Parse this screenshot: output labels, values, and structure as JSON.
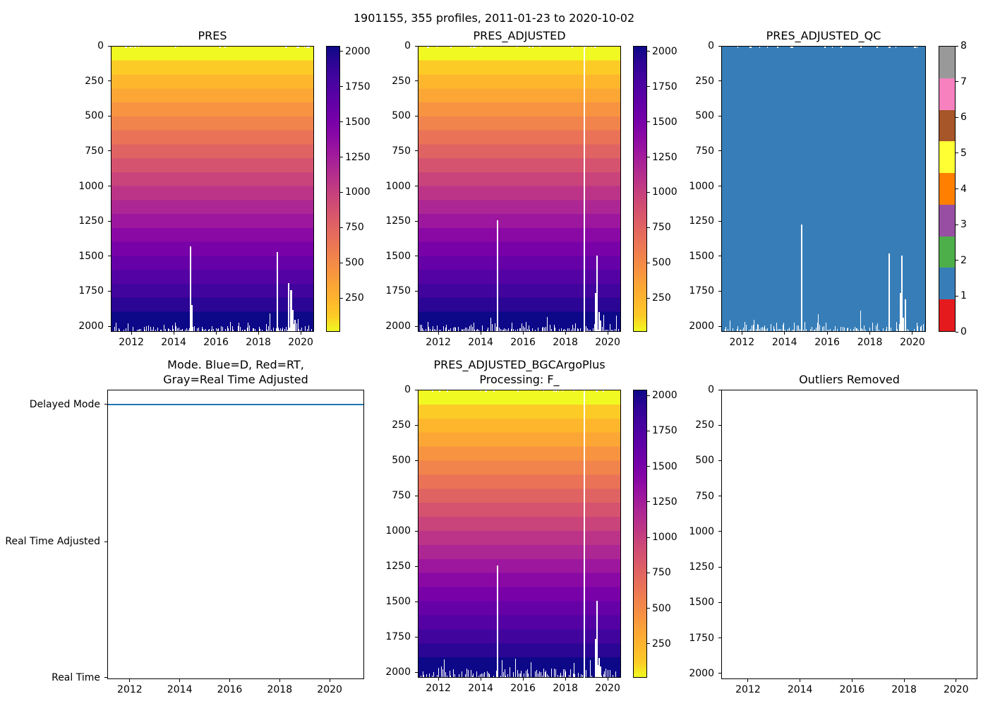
{
  "figure_title": "1901155, 355 profiles, 2011-01-23 to 2020-10-02",
  "colors": {
    "background": "#ffffff",
    "axis": "#000000",
    "mode_line_blue": "#1f77b4",
    "qc_fill_blue": "#377eb8",
    "plasma_bands_top_to_bottom": [
      "#f0f921",
      "#fccb26",
      "#feb72d",
      "#fca636",
      "#f79341",
      "#f1834c",
      "#e97257",
      "#e06363",
      "#d5536f",
      "#c9447a",
      "#bb3488",
      "#ac2694",
      "#9c179e",
      "#8a09a5",
      "#7801a8",
      "#6600a7",
      "#5402a3",
      "#41049d",
      "#2b0594",
      "#0d0887"
    ],
    "qc_palette_values_0_to_8": [
      "#e41a1c",
      "#377eb8",
      "#4daf4a",
      "#984ea3",
      "#ff7f00",
      "#ffff33",
      "#a65628",
      "#f781bf",
      "#999999"
    ]
  },
  "chart_data": [
    {
      "id": "pres",
      "type": "heatmap",
      "title": "PRES",
      "x_ticks": [
        2012,
        2014,
        2016,
        2018,
        2020
      ],
      "xlim": [
        2011.03,
        2020.63
      ],
      "y_ticks": [
        0,
        250,
        500,
        750,
        1000,
        1250,
        1500,
        1750,
        2000
      ],
      "ylim": [
        0,
        2040
      ],
      "y_axis": "pressure (dbar), 0 at top",
      "colormap": "plasma reversed (yellow=0 dbar at surface, dark blue=2000 dbar at depth)",
      "colorbar_ticks": [
        2000,
        1750,
        1500,
        1250,
        1000,
        750,
        500,
        250
      ],
      "colorbar_range_top_to_bottom": [
        2040,
        10
      ],
      "band_step_dbar": 100,
      "missing_columns": [
        {
          "x": 2014.76,
          "from_dbar": 1430,
          "w": 2
        },
        {
          "x": 2014.83,
          "from_dbar": 1850,
          "w": 2
        },
        {
          "x": 2018.87,
          "from_dbar": 1470,
          "w": 2
        },
        {
          "x": 2019.4,
          "from_dbar": 1690,
          "w": 2
        },
        {
          "x": 2019.5,
          "from_dbar": 1745,
          "w": 3
        },
        {
          "x": 2019.6,
          "from_dbar": 1885,
          "w": 2
        },
        {
          "x": 2019.7,
          "from_dbar": 1955,
          "w": 2
        }
      ],
      "bottom_noise": true,
      "top_noise": true
    },
    {
      "id": "pres_adjusted",
      "type": "heatmap",
      "title": "PRES_ADJUSTED",
      "x_ticks": [
        2012,
        2014,
        2016,
        2018,
        2020
      ],
      "xlim": [
        2011.03,
        2020.63
      ],
      "y_ticks": [
        0,
        250,
        500,
        750,
        1000,
        1250,
        1500,
        1750,
        2000
      ],
      "ylim": [
        0,
        2040
      ],
      "y_axis": "pressure (dbar), 0 at top",
      "colormap": "plasma reversed (yellow=0 dbar at surface, dark blue=2000 dbar at depth)",
      "colorbar_ticks": [
        2000,
        1750,
        1500,
        1250,
        1000,
        750,
        500,
        250
      ],
      "colorbar_range_top_to_bottom": [
        2040,
        10
      ],
      "band_step_dbar": 100,
      "missing_columns": [
        {
          "x": 2014.76,
          "from_dbar": 1245,
          "w": 2
        },
        {
          "x": 2018.86,
          "from_dbar": 0,
          "w": 2
        },
        {
          "x": 2019.4,
          "from_dbar": 1763,
          "w": 2
        },
        {
          "x": 2019.47,
          "from_dbar": 1495,
          "w": 2
        },
        {
          "x": 2019.55,
          "from_dbar": 1900,
          "w": 2
        },
        {
          "x": 2019.63,
          "from_dbar": 1960,
          "w": 2
        }
      ],
      "bottom_noise": true,
      "top_noise": true
    },
    {
      "id": "pres_adjusted_qc",
      "type": "qc_heatmap",
      "title": "PRES_ADJUSTED_QC",
      "x_ticks": [
        2012,
        2014,
        2016,
        2018,
        2020
      ],
      "xlim": [
        2011.03,
        2020.63
      ],
      "y_ticks": [
        0,
        250,
        500,
        750,
        1000,
        1250,
        1500,
        1750,
        2000
      ],
      "ylim": [
        0,
        2040
      ],
      "dominant_qc_value": 1,
      "colorbar_ticks": [
        8,
        7,
        6,
        5,
        4,
        3,
        2,
        1,
        0
      ],
      "colorbar_segments_bottom_to_top": [
        "0 red",
        "1 blue",
        "2 green",
        "3 purple",
        "4 orange",
        "5 yellow",
        "6 brown",
        "7 pink",
        "8 gray"
      ],
      "missing_columns": [
        {
          "x": 2014.76,
          "from_dbar": 1275,
          "w": 2
        },
        {
          "x": 2018.86,
          "from_dbar": 1480,
          "w": 2
        },
        {
          "x": 2019.4,
          "from_dbar": 1763,
          "w": 2
        },
        {
          "x": 2019.47,
          "from_dbar": 1495,
          "w": 2
        },
        {
          "x": 2019.55,
          "from_dbar": 1940,
          "w": 2
        },
        {
          "x": 2019.63,
          "from_dbar": 1810,
          "w": 2
        }
      ],
      "bottom_noise": true,
      "top_noise": true
    },
    {
      "id": "mode",
      "type": "line",
      "title": "Mode. Blue=D, Red=RT,\nGray=Real Time Adjusted",
      "x_ticks": [
        2012,
        2014,
        2016,
        2018,
        2020
      ],
      "xlim": [
        2011.1,
        2021.38
      ],
      "y_categories": [
        "Delayed Mode",
        "Real Time Adjusted",
        "Real Time"
      ],
      "series": [
        {
          "name": "processing mode",
          "constant_value": "Delayed Mode",
          "color": "#1f77b4",
          "note": "flat blue line at Delayed Mode across entire record"
        }
      ]
    },
    {
      "id": "pres_adjusted_bgcargoplus",
      "type": "heatmap",
      "title": "PRES_ADJUSTED_BGCArgoPlus\nProcessing: F_",
      "x_ticks": [
        2012,
        2014,
        2016,
        2018,
        2020
      ],
      "xlim": [
        2011.03,
        2020.63
      ],
      "y_ticks": [
        0,
        250,
        500,
        750,
        1000,
        1250,
        1500,
        1750,
        2000
      ],
      "ylim": [
        0,
        2040
      ],
      "y_axis": "pressure (dbar), 0 at top",
      "colormap": "plasma reversed (yellow=0 dbar at surface, dark blue=2000 dbar at depth)",
      "colorbar_ticks": [
        2000,
        1750,
        1500,
        1250,
        1000,
        750,
        500,
        250
      ],
      "colorbar_range_top_to_bottom": [
        2040,
        10
      ],
      "band_step_dbar": 100,
      "missing_columns": [
        {
          "x": 2014.76,
          "from_dbar": 1245,
          "w": 2
        },
        {
          "x": 2018.86,
          "from_dbar": 0,
          "w": 2
        },
        {
          "x": 2019.4,
          "from_dbar": 1763,
          "w": 2
        },
        {
          "x": 2019.47,
          "from_dbar": 1495,
          "w": 2
        },
        {
          "x": 2019.55,
          "from_dbar": 1900,
          "w": 2
        },
        {
          "x": 2019.63,
          "from_dbar": 1960,
          "w": 2
        }
      ],
      "bottom_noise": true,
      "top_noise": true
    },
    {
      "id": "outliers_removed",
      "type": "empty",
      "title": "Outliers Removed",
      "x_ticks": [
        2012,
        2014,
        2016,
        2018,
        2020
      ],
      "xlim": [
        2010.97,
        2020.82
      ],
      "y_ticks": [
        0,
        250,
        500,
        750,
        1000,
        1250,
        1500,
        1750,
        2000
      ],
      "ylim": [
        0,
        2040
      ],
      "note": "no outliers plotted"
    }
  ]
}
